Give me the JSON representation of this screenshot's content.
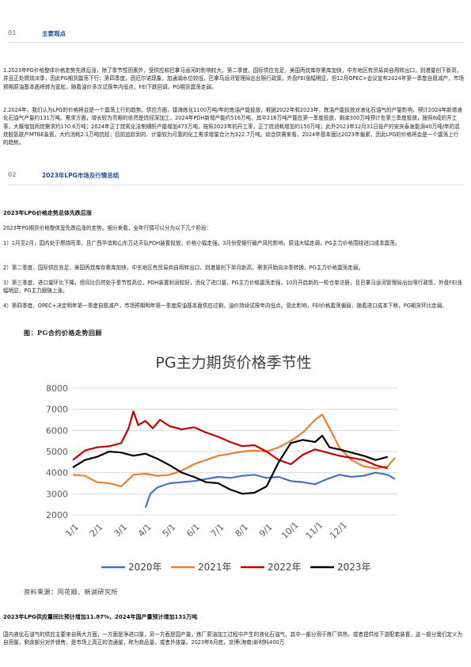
{
  "section1": {
    "num": "01",
    "title": "主要观点"
  },
  "p1": "1.2023年PG价格整体价格走势先跌后涨，除了季节性因素外，受供应和巴拿马运河的影响较大。第二季度，国际供应充足，美国丙烷库存累库加快，中东地区有贸易商自用转出口，到港量创下新高，并且正处燃烧淡季，因此PG期货震荡下行；第四季度，因厄尔诺现象，加通湖水位较低，巴拿马运河管理局出台限行政策，外盘FEI涨幅明显，但12月OPEC+会议宣布2024年第一季度自愿减产，市场预期原油基本面将转为宽松，随着油价多次试探年内低点，FEI下跌回调，PG期货震荡走弱。",
  "p2": "2.2024年，我们认为LPG的价格将会是一个震荡上行的趋势。供应方面，镇海炼化1100万吨/年的炼油产能投放，根据2022年和2023年，炼油产能投放对液化石油气的产量影响，预计2024年新增液化石油气产量约131万吨。需求方面，增长较为亮眼的依然是烷烃深加工，2024年PDH新增产能约516万吨，其中216万吨产能在第一季度投放，剩余300万吨预计在第三季度投放，按照6成的开工率，大概增加丙烷需求约170.6万吨；2024年正丁烷氧化法制顺酐产能增加473万吨，按照2023年的开工率，正丁烷消耗增加约150万吨；此外2023年12月31日投产的安庆泰发能源40万吨/年的混烷脱氢联产MTBE装置，大约消耗2.1万吨烷烃；目前追踪到的、计量较为可靠的化工需求增量合计为322.7万吨。综合供需来看，2024年基本面比2023年偏紧，因此LPG的价格将会是一个震荡上行的趋势。",
  "section2": {
    "num": "02",
    "title": "2023年LPG市场及行情总结"
  },
  "h1": "2023年LPG价格走势总体先跌后涨",
  "p3": "2023年PG期货价格整体呈先跌后涨的走势。细分来看，全年行情可以分为以下几个阶段：",
  "p4": "1）1月至2月，国内处于燃烧旺季，且广西华谊和山东万达天弘PDH装置投放，价格小幅走强。3月份受银行破产风险影响，原油大幅走弱，PG主力价格围绕进口成本震荡。",
  "p5": "2）第二季度，国际供应充足，美国丙烷库存累库加快，中东地区有贸易商自用转出口，到港量创下单月新高，需求开始向淡季转换，PG主力价格震荡走弱。",
  "p6": "3）第三季度，进口量环比下降，但同比仍然处于季节性高位，PDH装置利润较好，消化了进口量，PG主力价格震荡走强，10月开启新的一轮仓单注册，且巴拿马运河管理局出台限行政策，外盘FEI涨幅明显，PG主力跟随上涨。",
  "p7": "4）第四季度，OPEC+决定明年第一季度自愿减产，市场预期明年第一季度原油基本面供应过剩，油价持续试探年内低点。受此影响，FEI价格震荡偏弱，随着进口成本下移，PG期货环比走弱。",
  "figure": {
    "caption": "图：PG合约价格走势回顾",
    "source": "资料来源：同花顺、新湖研究所"
  },
  "h2": "2023年LPG供应量同比预计增加11.87%，2024年国产量预计增加131万吨",
  "p8": "国内液化石油气的供应主要来自两大方面，一方面是净进口量，另一方面是国产量，炼厂原油加工过程中产生的液化石油气，其中一部分用于炼厂供热，或者提供给下游配套装置，这一部分我们定义为自用量，剩余部分对外销售，是市场上真正的流通量，称为商品量，或者外放量。2023年6月底，京博(海南)新材料400万",
  "chart_data": {
    "type": "line",
    "title": "PG主力期货价格季节性",
    "categories": [
      "1/1",
      "2/1",
      "3/1",
      "4/1",
      "5/1",
      "6/1",
      "7/1",
      "8/1",
      "9/1",
      "10/1",
      "11/1",
      "12/1"
    ],
    "ylim": [
      2000,
      8000
    ],
    "yticks": [
      2000,
      3000,
      4000,
      5000,
      6000,
      7000,
      8000
    ],
    "xlabel": "",
    "ylabel": "",
    "grid": true,
    "legend": "bottom",
    "series": [
      {
        "name": "2020年",
        "color": "#4472c4",
        "points": [
          [
            3.0,
            2350
          ],
          [
            3.2,
            3000
          ],
          [
            3.5,
            3300
          ],
          [
            4.0,
            3500
          ],
          [
            4.5,
            3550
          ],
          [
            5.0,
            3600
          ],
          [
            5.5,
            3700
          ],
          [
            6.0,
            3800
          ],
          [
            6.5,
            3750
          ],
          [
            7.0,
            3850
          ],
          [
            7.5,
            3900
          ],
          [
            8.0,
            3750
          ],
          [
            8.5,
            3800
          ],
          [
            9.0,
            3600
          ],
          [
            9.5,
            3550
          ],
          [
            10.0,
            3450
          ],
          [
            10.5,
            3700
          ],
          [
            11.0,
            3900
          ],
          [
            11.5,
            3800
          ],
          [
            12.0,
            3850
          ],
          [
            12.5,
            4000
          ],
          [
            13.0,
            3900
          ],
          [
            13.3,
            3700
          ]
        ]
      },
      {
        "name": "2021年",
        "color": "#ed7d31",
        "points": [
          [
            0.0,
            3900
          ],
          [
            0.5,
            3850
          ],
          [
            1.0,
            3550
          ],
          [
            1.5,
            3500
          ],
          [
            2.0,
            3350
          ],
          [
            2.5,
            3900
          ],
          [
            3.0,
            3950
          ],
          [
            3.5,
            3850
          ],
          [
            4.0,
            3900
          ],
          [
            4.5,
            4100
          ],
          [
            5.0,
            4400
          ],
          [
            5.5,
            4600
          ],
          [
            6.0,
            4800
          ],
          [
            6.5,
            4900
          ],
          [
            7.0,
            5000
          ],
          [
            7.5,
            5050
          ],
          [
            8.0,
            5000
          ],
          [
            8.5,
            5200
          ],
          [
            9.0,
            5500
          ],
          [
            9.5,
            5900
          ],
          [
            10.0,
            6500
          ],
          [
            10.3,
            6750
          ],
          [
            10.6,
            6100
          ],
          [
            11.0,
            5200
          ],
          [
            11.5,
            4600
          ],
          [
            12.0,
            4300
          ],
          [
            12.5,
            4200
          ],
          [
            13.0,
            4300
          ],
          [
            13.3,
            4700
          ]
        ]
      },
      {
        "name": "2022年",
        "color": "#c00000",
        "points": [
          [
            0.0,
            4600
          ],
          [
            0.5,
            5050
          ],
          [
            1.0,
            5200
          ],
          [
            1.5,
            5250
          ],
          [
            2.0,
            5400
          ],
          [
            2.3,
            6100
          ],
          [
            2.5,
            6900
          ],
          [
            2.7,
            6250
          ],
          [
            3.0,
            6450
          ],
          [
            3.3,
            6100
          ],
          [
            3.6,
            6500
          ],
          [
            4.0,
            6200
          ],
          [
            4.5,
            6050
          ],
          [
            5.0,
            6150
          ],
          [
            5.5,
            5900
          ],
          [
            6.0,
            5700
          ],
          [
            6.5,
            5450
          ],
          [
            7.0,
            5250
          ],
          [
            7.5,
            5300
          ],
          [
            8.0,
            5000
          ],
          [
            8.5,
            4600
          ],
          [
            9.0,
            4400
          ],
          [
            9.5,
            4850
          ],
          [
            10.0,
            5100
          ],
          [
            10.5,
            4950
          ],
          [
            11.0,
            4800
          ],
          [
            11.5,
            4700
          ],
          [
            12.0,
            4600
          ],
          [
            12.5,
            4350
          ],
          [
            13.0,
            4200
          ]
        ]
      },
      {
        "name": "2023年",
        "color": "#000000",
        "points": [
          [
            0.0,
            4250
          ],
          [
            0.5,
            4600
          ],
          [
            1.0,
            4750
          ],
          [
            1.5,
            5000
          ],
          [
            2.0,
            4950
          ],
          [
            2.5,
            4800
          ],
          [
            3.0,
            4900
          ],
          [
            3.5,
            4650
          ],
          [
            4.0,
            4350
          ],
          [
            4.5,
            4000
          ],
          [
            5.0,
            3800
          ],
          [
            5.5,
            3550
          ],
          [
            6.0,
            3500
          ],
          [
            6.5,
            3200
          ],
          [
            7.0,
            3000
          ],
          [
            7.5,
            3050
          ],
          [
            8.0,
            3350
          ],
          [
            8.5,
            4500
          ],
          [
            9.0,
            5400
          ],
          [
            9.5,
            5550
          ],
          [
            10.0,
            5450
          ],
          [
            10.3,
            5750
          ],
          [
            10.6,
            5200
          ],
          [
            11.0,
            5100
          ],
          [
            11.5,
            4950
          ],
          [
            12.0,
            4800
          ],
          [
            12.5,
            4600
          ],
          [
            13.0,
            4750
          ]
        ]
      }
    ]
  }
}
